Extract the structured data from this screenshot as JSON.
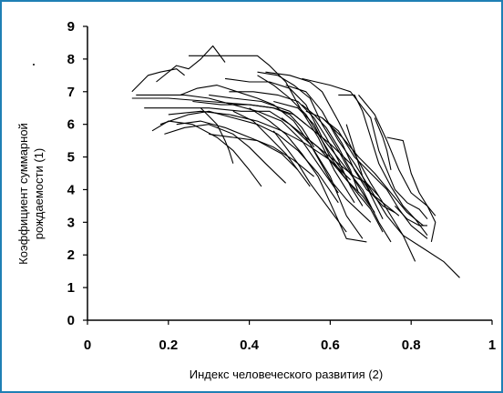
{
  "chart_data": {
    "type": "line",
    "title": "",
    "xlabel": "Индекс человеческого развития (2)",
    "ylabel_lines": [
      "Коэффициент суммарной",
      "рождаемости (1)"
    ],
    "xlim": [
      0,
      1
    ],
    "ylim": [
      0,
      9
    ],
    "x_ticks": [
      0,
      0.2,
      0.4,
      0.6,
      0.8,
      1
    ],
    "x_tick_labels": [
      "0",
      "0.2",
      "0.4",
      "0.6",
      "0.8",
      "1"
    ],
    "y_ticks": [
      0,
      1,
      2,
      3,
      4,
      5,
      6,
      7,
      8,
      9
    ],
    "y_tick_labels": [
      "0",
      "1",
      "2",
      "3",
      "4",
      "5",
      "6",
      "7",
      "8",
      "9"
    ],
    "grid": false,
    "legend": "none",
    "line_color": "#000000",
    "frame_color": "#1f7fb4",
    "series": [
      {
        "points": [
          [
            0.11,
            7.0
          ],
          [
            0.15,
            7.5
          ],
          [
            0.18,
            7.6
          ],
          [
            0.22,
            7.7
          ],
          [
            0.24,
            7.5
          ]
        ]
      },
      {
        "points": [
          [
            0.17,
            7.3
          ],
          [
            0.22,
            7.8
          ],
          [
            0.25,
            7.7
          ],
          [
            0.28,
            8.0
          ],
          [
            0.31,
            8.4
          ],
          [
            0.34,
            7.9
          ]
        ]
      },
      {
        "points": [
          [
            0.25,
            8.1
          ],
          [
            0.3,
            8.1
          ],
          [
            0.36,
            8.1
          ],
          [
            0.42,
            8.1
          ],
          [
            0.45,
            7.8
          ],
          [
            0.49,
            7.3
          ],
          [
            0.53,
            6.4
          ],
          [
            0.57,
            5.6
          ],
          [
            0.61,
            4.6
          ],
          [
            0.66,
            3.6
          ]
        ]
      },
      {
        "points": [
          [
            0.42,
            7.6
          ],
          [
            0.47,
            7.5
          ],
          [
            0.51,
            7.2
          ],
          [
            0.55,
            6.8
          ],
          [
            0.58,
            6.0
          ],
          [
            0.62,
            5.2
          ],
          [
            0.66,
            4.3
          ],
          [
            0.7,
            3.5
          ]
        ]
      },
      {
        "points": [
          [
            0.12,
            6.9
          ],
          [
            0.18,
            6.9
          ],
          [
            0.24,
            6.9
          ],
          [
            0.3,
            6.8
          ],
          [
            0.36,
            6.6
          ],
          [
            0.42,
            6.4
          ],
          [
            0.48,
            6.1
          ],
          [
            0.53,
            5.5
          ],
          [
            0.58,
            4.6
          ],
          [
            0.62,
            3.9
          ]
        ]
      },
      {
        "points": [
          [
            0.11,
            6.8
          ],
          [
            0.2,
            6.8
          ],
          [
            0.3,
            6.7
          ],
          [
            0.4,
            6.6
          ],
          [
            0.46,
            6.5
          ],
          [
            0.51,
            6.3
          ],
          [
            0.54,
            6.0
          ]
        ]
      },
      {
        "points": [
          [
            0.14,
            6.5
          ],
          [
            0.22,
            6.5
          ],
          [
            0.3,
            6.5
          ],
          [
            0.38,
            6.4
          ],
          [
            0.45,
            6.4
          ],
          [
            0.5,
            6.0
          ],
          [
            0.55,
            5.4
          ],
          [
            0.6,
            4.4
          ],
          [
            0.64,
            3.2
          ],
          [
            0.68,
            2.5
          ]
        ]
      },
      {
        "points": [
          [
            0.18,
            6.0
          ],
          [
            0.25,
            6.3
          ],
          [
            0.3,
            6.4
          ],
          [
            0.36,
            6.2
          ],
          [
            0.42,
            6.0
          ],
          [
            0.47,
            5.7
          ],
          [
            0.52,
            5.2
          ],
          [
            0.57,
            4.5
          ],
          [
            0.62,
            3.6
          ]
        ]
      },
      {
        "points": [
          [
            0.19,
            5.7
          ],
          [
            0.24,
            5.9
          ],
          [
            0.3,
            6.0
          ],
          [
            0.36,
            5.7
          ],
          [
            0.4,
            5.3
          ],
          [
            0.44,
            4.8
          ],
          [
            0.49,
            4.2
          ]
        ]
      },
      {
        "points": [
          [
            0.16,
            5.8
          ],
          [
            0.2,
            6.1
          ],
          [
            0.26,
            6.0
          ],
          [
            0.32,
            5.6
          ],
          [
            0.36,
            5.2
          ],
          [
            0.4,
            4.6
          ],
          [
            0.43,
            4.1
          ]
        ]
      },
      {
        "points": [
          [
            0.28,
            6.5
          ],
          [
            0.32,
            6.0
          ],
          [
            0.34,
            5.5
          ],
          [
            0.35,
            5.2
          ],
          [
            0.36,
            4.8
          ]
        ]
      },
      {
        "points": [
          [
            0.23,
            6.9
          ],
          [
            0.27,
            7.1
          ],
          [
            0.32,
            7.2
          ],
          [
            0.37,
            7.0
          ],
          [
            0.42,
            6.8
          ],
          [
            0.46,
            6.6
          ],
          [
            0.51,
            6.1
          ],
          [
            0.55,
            5.4
          ],
          [
            0.6,
            4.3
          ],
          [
            0.64,
            3.7
          ],
          [
            0.7,
            3.0
          ]
        ]
      },
      {
        "points": [
          [
            0.34,
            7.4
          ],
          [
            0.4,
            7.3
          ],
          [
            0.45,
            7.3
          ],
          [
            0.5,
            7.1
          ],
          [
            0.54,
            6.6
          ],
          [
            0.58,
            5.6
          ],
          [
            0.63,
            4.8
          ],
          [
            0.68,
            4.0
          ],
          [
            0.72,
            3.0
          ],
          [
            0.75,
            2.4
          ]
        ]
      },
      {
        "points": [
          [
            0.44,
            7.6
          ],
          [
            0.5,
            7.5
          ],
          [
            0.55,
            7.3
          ],
          [
            0.58,
            7.0
          ],
          [
            0.62,
            6.1
          ],
          [
            0.66,
            5.1
          ],
          [
            0.7,
            4.2
          ],
          [
            0.74,
            3.4
          ],
          [
            0.78,
            2.6
          ],
          [
            0.81,
            1.8
          ]
        ]
      },
      {
        "points": [
          [
            0.49,
            7.2
          ],
          [
            0.54,
            7.0
          ],
          [
            0.58,
            6.4
          ],
          [
            0.62,
            5.5
          ],
          [
            0.66,
            4.8
          ],
          [
            0.7,
            4.0
          ],
          [
            0.74,
            3.2
          ],
          [
            0.78,
            2.6
          ],
          [
            0.83,
            2.2
          ],
          [
            0.88,
            1.8
          ],
          [
            0.92,
            1.3
          ]
        ]
      },
      {
        "points": [
          [
            0.46,
            6.7
          ],
          [
            0.52,
            6.5
          ],
          [
            0.56,
            6.0
          ],
          [
            0.6,
            5.0
          ],
          [
            0.64,
            4.3
          ],
          [
            0.68,
            3.8
          ],
          [
            0.71,
            3.3
          ]
        ]
      },
      {
        "points": [
          [
            0.4,
            6.5
          ],
          [
            0.45,
            6.1
          ],
          [
            0.49,
            5.7
          ],
          [
            0.53,
            5.1
          ],
          [
            0.57,
            4.4
          ],
          [
            0.6,
            3.6
          ],
          [
            0.64,
            2.5
          ],
          [
            0.69,
            2.4
          ]
        ]
      },
      {
        "points": [
          [
            0.36,
            6.4
          ],
          [
            0.41,
            6.1
          ],
          [
            0.45,
            5.6
          ],
          [
            0.49,
            5.1
          ],
          [
            0.52,
            4.6
          ],
          [
            0.55,
            4.1
          ]
        ]
      },
      {
        "points": [
          [
            0.3,
            5.7
          ],
          [
            0.36,
            5.6
          ],
          [
            0.42,
            5.5
          ],
          [
            0.48,
            5.1
          ],
          [
            0.52,
            4.6
          ]
        ]
      },
      {
        "points": [
          [
            0.46,
            5.8
          ],
          [
            0.49,
            5.3
          ],
          [
            0.52,
            4.8
          ],
          [
            0.55,
            4.2
          ],
          [
            0.58,
            3.7
          ],
          [
            0.61,
            3.2
          ],
          [
            0.64,
            2.7
          ]
        ]
      },
      {
        "points": [
          [
            0.48,
            6.2
          ],
          [
            0.52,
            5.8
          ],
          [
            0.57,
            5.3
          ],
          [
            0.62,
            4.6
          ],
          [
            0.66,
            4.0
          ],
          [
            0.7,
            3.4
          ],
          [
            0.73,
            2.7
          ]
        ]
      },
      {
        "points": [
          [
            0.53,
            7.4
          ],
          [
            0.6,
            7.2
          ],
          [
            0.65,
            7.0
          ],
          [
            0.7,
            6.2
          ],
          [
            0.72,
            5.2
          ],
          [
            0.74,
            4.6
          ],
          [
            0.76,
            4.0
          ],
          [
            0.79,
            3.6
          ],
          [
            0.82,
            3.4
          ],
          [
            0.84,
            3.1
          ]
        ]
      },
      {
        "points": [
          [
            0.54,
            6.4
          ],
          [
            0.58,
            6.2
          ],
          [
            0.62,
            5.8
          ],
          [
            0.66,
            5.0
          ],
          [
            0.7,
            4.5
          ],
          [
            0.74,
            4.0
          ],
          [
            0.77,
            3.4
          ],
          [
            0.8,
            2.9
          ],
          [
            0.84,
            2.5
          ]
        ]
      },
      {
        "points": [
          [
            0.58,
            6.2
          ],
          [
            0.63,
            5.6
          ],
          [
            0.67,
            5.0
          ],
          [
            0.71,
            4.5
          ],
          [
            0.75,
            3.9
          ],
          [
            0.79,
            3.3
          ],
          [
            0.83,
            2.9
          ]
        ]
      },
      {
        "points": [
          [
            0.62,
            6.9
          ],
          [
            0.66,
            6.9
          ],
          [
            0.68,
            6.4
          ],
          [
            0.7,
            5.6
          ],
          [
            0.72,
            4.8
          ],
          [
            0.75,
            4.1
          ],
          [
            0.78,
            3.5
          ],
          [
            0.81,
            3.1
          ],
          [
            0.84,
            2.6
          ]
        ]
      },
      {
        "points": [
          [
            0.67,
            6.9
          ],
          [
            0.71,
            6.3
          ],
          [
            0.74,
            5.5
          ],
          [
            0.77,
            4.6
          ],
          [
            0.8,
            3.9
          ],
          [
            0.84,
            3.5
          ],
          [
            0.86,
            3.2
          ]
        ]
      },
      {
        "points": [
          [
            0.71,
            6.2
          ],
          [
            0.73,
            5.6
          ],
          [
            0.74,
            5.2
          ],
          [
            0.75,
            4.6
          ]
        ]
      },
      {
        "points": [
          [
            0.74,
            5.6
          ],
          [
            0.78,
            5.5
          ],
          [
            0.8,
            4.5
          ],
          [
            0.82,
            3.9
          ],
          [
            0.84,
            3.5
          ],
          [
            0.86,
            3.0
          ],
          [
            0.85,
            2.4
          ]
        ]
      },
      {
        "points": [
          [
            0.76,
            3.5
          ],
          [
            0.79,
            3.1
          ],
          [
            0.82,
            2.9
          ],
          [
            0.84,
            2.9
          ]
        ]
      },
      {
        "points": [
          [
            0.55,
            5.5
          ],
          [
            0.59,
            5.1
          ],
          [
            0.63,
            4.7
          ],
          [
            0.66,
            4.4
          ],
          [
            0.69,
            4.2
          ],
          [
            0.72,
            3.8
          ]
        ]
      },
      {
        "points": [
          [
            0.6,
            6.0
          ],
          [
            0.63,
            5.4
          ],
          [
            0.66,
            4.6
          ],
          [
            0.69,
            4.0
          ],
          [
            0.73,
            3.6
          ],
          [
            0.77,
            3.2
          ]
        ]
      },
      {
        "points": [
          [
            0.42,
            7.5
          ],
          [
            0.46,
            7.2
          ],
          [
            0.5,
            6.8
          ],
          [
            0.54,
            6.3
          ],
          [
            0.57,
            5.7
          ],
          [
            0.6,
            5.1
          ],
          [
            0.64,
            4.4
          ]
        ]
      },
      {
        "points": [
          [
            0.3,
            6.9
          ],
          [
            0.36,
            6.8
          ],
          [
            0.43,
            6.7
          ],
          [
            0.5,
            6.4
          ],
          [
            0.55,
            5.9
          ],
          [
            0.6,
            5.4
          ],
          [
            0.65,
            4.8
          ],
          [
            0.69,
            4.1
          ],
          [
            0.73,
            3.1
          ]
        ]
      },
      {
        "points": [
          [
            0.2,
            6.3
          ],
          [
            0.28,
            6.4
          ],
          [
            0.35,
            6.3
          ],
          [
            0.42,
            6.1
          ],
          [
            0.48,
            5.8
          ],
          [
            0.54,
            5.4
          ],
          [
            0.6,
            4.9
          ],
          [
            0.65,
            4.3
          ]
        ]
      },
      {
        "points": [
          [
            0.22,
            6.0
          ],
          [
            0.28,
            6.1
          ],
          [
            0.34,
            5.9
          ],
          [
            0.4,
            5.6
          ],
          [
            0.46,
            5.3
          ],
          [
            0.51,
            4.9
          ],
          [
            0.56,
            4.4
          ]
        ]
      },
      {
        "points": [
          [
            0.26,
            6.7
          ],
          [
            0.33,
            6.6
          ],
          [
            0.4,
            6.6
          ],
          [
            0.46,
            6.5
          ],
          [
            0.5,
            6.3
          ],
          [
            0.53,
            5.9
          ],
          [
            0.56,
            5.3
          ]
        ]
      },
      {
        "points": [
          [
            0.35,
            7.0
          ],
          [
            0.41,
            7.0
          ],
          [
            0.47,
            6.9
          ],
          [
            0.52,
            6.7
          ],
          [
            0.56,
            6.2
          ],
          [
            0.59,
            5.6
          ],
          [
            0.62,
            4.9
          ],
          [
            0.65,
            4.1
          ],
          [
            0.68,
            3.5
          ]
        ]
      },
      {
        "points": [
          [
            0.53,
            6.6
          ],
          [
            0.56,
            6.3
          ],
          [
            0.59,
            5.9
          ],
          [
            0.62,
            5.3
          ],
          [
            0.65,
            4.6
          ],
          [
            0.67,
            3.9
          ]
        ]
      },
      {
        "points": [
          [
            0.64,
            6.0
          ],
          [
            0.66,
            5.2
          ],
          [
            0.68,
            4.4
          ],
          [
            0.7,
            3.9
          ],
          [
            0.73,
            3.5
          ],
          [
            0.76,
            3.3
          ]
        ]
      }
    ]
  }
}
